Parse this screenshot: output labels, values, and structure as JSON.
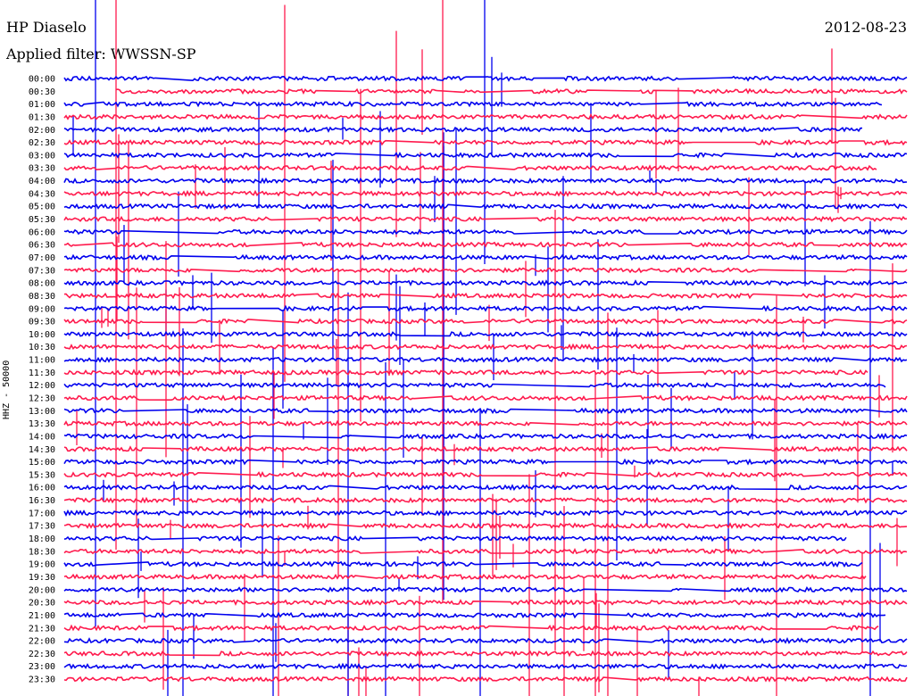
{
  "header": {
    "station": "HP Diaselo",
    "date": "2012-08-23",
    "filter": "Applied filter: WWSSN-SP"
  },
  "chart_data": {
    "type": "line",
    "title": "HP Diaselo",
    "date": "2012-08-23",
    "filter": "WWSSN-SP",
    "channel_label": "HHZ - 50000",
    "row_labels": [
      "00:00",
      "00:30",
      "01:00",
      "01:30",
      "02:00",
      "02:30",
      "03:00",
      "03:30",
      "04:00",
      "04:30",
      "05:00",
      "05:30",
      "06:00",
      "06:30",
      "07:00",
      "07:30",
      "08:00",
      "08:30",
      "09:00",
      "09:30",
      "10:00",
      "10:30",
      "11:00",
      "11:30",
      "12:00",
      "12:30",
      "13:00",
      "13:30",
      "14:00",
      "14:30",
      "15:00",
      "15:30",
      "16:00",
      "16:30",
      "17:00",
      "17:30",
      "18:00",
      "18:30",
      "19:00",
      "19:30",
      "20:00",
      "20:30",
      "21:00",
      "21:30",
      "22:00",
      "22:30",
      "23:00",
      "23:30"
    ],
    "colors": [
      "#0000ee",
      "#ff1a4d"
    ],
    "grid": false
  }
}
